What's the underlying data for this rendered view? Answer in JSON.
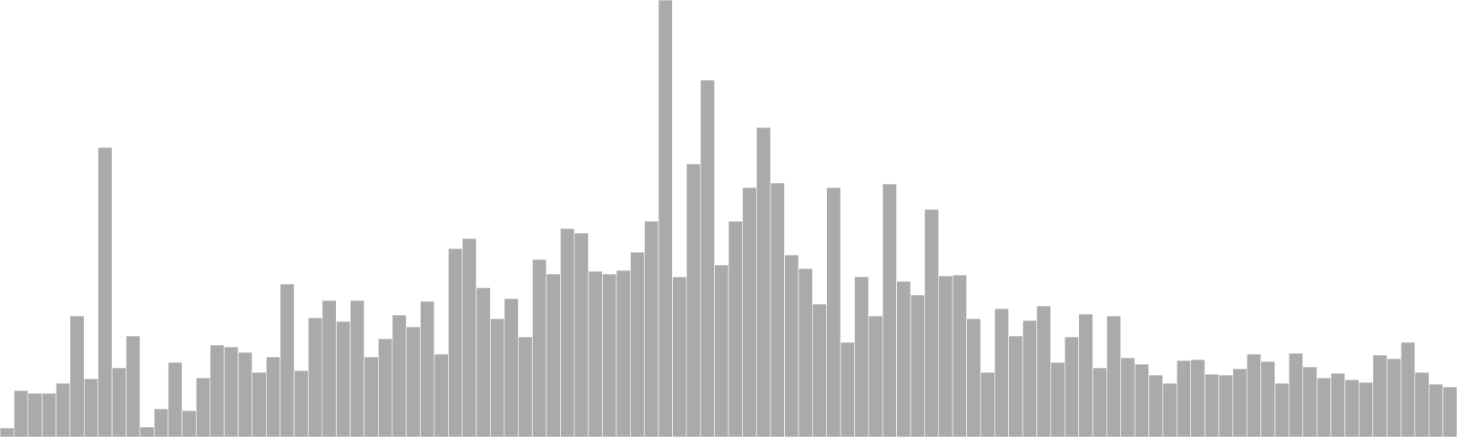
{
  "chart_data": {
    "type": "bar",
    "title": "",
    "xlabel": "",
    "ylabel": "",
    "ylim": [
      0,
      480
    ],
    "grid": false,
    "legend": "none",
    "bar_color": "#aaaaaa",
    "bar_edge_color": "#ffffff",
    "background": "#ffffff",
    "values": [
      10,
      51,
      48,
      48,
      59,
      133,
      64,
      318,
      76,
      111,
      11,
      31,
      82,
      29,
      65,
      101,
      99,
      93,
      71,
      88,
      168,
      73,
      131,
      150,
      127,
      150,
      88,
      108,
      134,
      121,
      149,
      91,
      207,
      218,
      164,
      130,
      152,
      110,
      195,
      179,
      229,
      224,
      182,
      179,
      183,
      203,
      237,
      480,
      176,
      300,
      392,
      189,
      237,
      274,
      340,
      279,
      200,
      185,
      146,
      274,
      104,
      176,
      133,
      278,
      171,
      156,
      250,
      177,
      178,
      130,
      71,
      141,
      111,
      128,
      144,
      82,
      110,
      135,
      76,
      133,
      87,
      80,
      68,
      59,
      84,
      85,
      69,
      68,
      75,
      91,
      83,
      59,
      92,
      77,
      65,
      70,
      63,
      60,
      90,
      86,
      104,
      71,
      58,
      55
    ]
  }
}
